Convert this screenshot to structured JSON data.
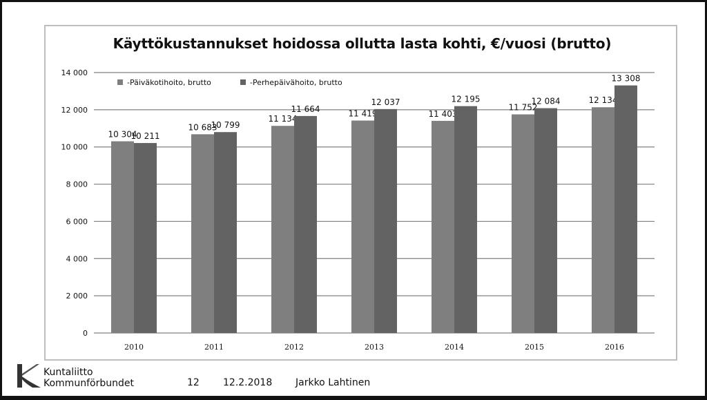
{
  "footer": {
    "org_fi": "Kuntaliitto",
    "org_sv": "Kommunförbundet",
    "page": "12",
    "date": "12.2.2018",
    "author": "Jarkko Lahtinen"
  },
  "colors": {
    "series1": "#7f7f7f",
    "series2": "#636363",
    "grid": "#808080"
  },
  "chart_data": {
    "type": "bar",
    "title": "Käyttökustannukset hoidossa ollutta lasta kohti, €/vuosi (brutto)",
    "xlabel": "",
    "ylabel": "",
    "ylim": [
      0,
      14000
    ],
    "yticks": [
      0,
      2000,
      4000,
      6000,
      8000,
      10000,
      12000,
      14000
    ],
    "ytick_labels": [
      "0",
      "2 000",
      "4 000",
      "6 000",
      "8 000",
      "10 000",
      "12 000",
      "14 000"
    ],
    "grid": true,
    "legend_position": "top-left",
    "categories": [
      "2010",
      "2011",
      "2012",
      "2013",
      "2014",
      "2015",
      "2016"
    ],
    "series": [
      {
        "name": "-Päiväkotihoito, brutto",
        "values": [
          10304,
          10683,
          11134,
          11419,
          11403,
          11752,
          12134
        ],
        "labels": [
          "10 304",
          "10 683",
          "11 134",
          "11 419",
          "11 403",
          "11 752",
          "12 134"
        ]
      },
      {
        "name": "-Perhepäivähoito, brutto",
        "values": [
          10211,
          10799,
          11664,
          12037,
          12195,
          12084,
          13308
        ],
        "labels": [
          "10 211",
          "10 799",
          "11 664",
          "12 037",
          "12 195",
          "12 084",
          "13 308"
        ]
      }
    ]
  }
}
